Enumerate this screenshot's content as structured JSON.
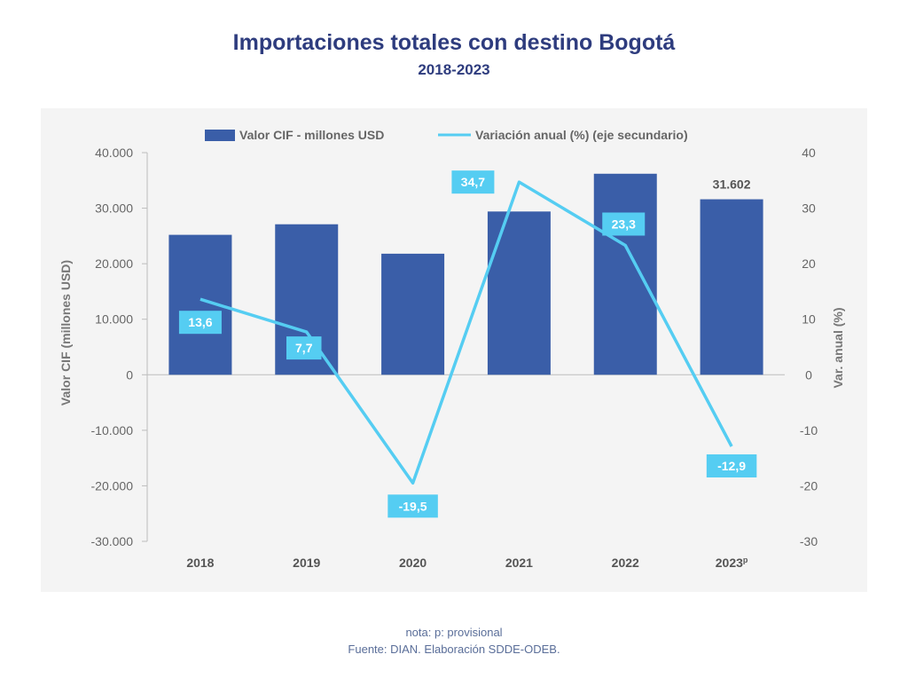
{
  "header": {
    "title": "Importaciones totales con destino Bogotá",
    "subtitle": "2018-2023"
  },
  "footer": {
    "note": "nota: p: provisional",
    "source": "Fuente: DIAN. Elaboración SDDE-ODEB."
  },
  "colors": {
    "bar": "#3a5ea8",
    "line": "#55cdf2",
    "label_bg": "#55cdf2",
    "panel": "#f4f4f4",
    "title": "#2e3c7e"
  },
  "chart_data": {
    "type": "bar",
    "categories": [
      "2018",
      "2019",
      "2020",
      "2021",
      "2022",
      "2023"
    ],
    "category_suffixes": [
      "",
      "",
      "",
      "",
      "",
      "p"
    ],
    "series": [
      {
        "name": "Valor CIF - millones USD",
        "kind": "bar",
        "axis": "primary",
        "values": [
          25200,
          27100,
          21800,
          29400,
          36200,
          31602
        ],
        "data_labels": [
          "",
          "",
          "",
          "",
          "",
          "31.602"
        ]
      },
      {
        "name": "Variación anual (%) (eje secundario)",
        "kind": "line",
        "axis": "secondary",
        "values": [
          13.6,
          7.7,
          -19.5,
          34.7,
          23.3,
          -12.9
        ],
        "data_labels": [
          "13,6",
          "7,7",
          "-19,5",
          "34,7",
          "23,3",
          "-12,9"
        ]
      }
    ],
    "y_primary": {
      "label": "Valor CIF (millones USD)",
      "ylim": [
        -30000,
        40000
      ],
      "ticks": [
        40000,
        30000,
        20000,
        10000,
        0,
        -10000,
        -20000,
        -30000
      ],
      "tick_labels": [
        "40.000",
        "30.000",
        "20.000",
        "10.000",
        "0",
        "-10.000",
        "-20.000",
        "-30.000"
      ]
    },
    "y_secondary": {
      "label": "Var. anual (%)",
      "ylim": [
        -30,
        40
      ],
      "ticks": [
        40,
        30,
        20,
        10,
        0,
        -10,
        -20,
        -30
      ],
      "tick_labels": [
        "40",
        "30",
        "20",
        "10",
        "0",
        "-10",
        "-20",
        "-30"
      ]
    },
    "legend_position": "top-center",
    "grid": false
  }
}
